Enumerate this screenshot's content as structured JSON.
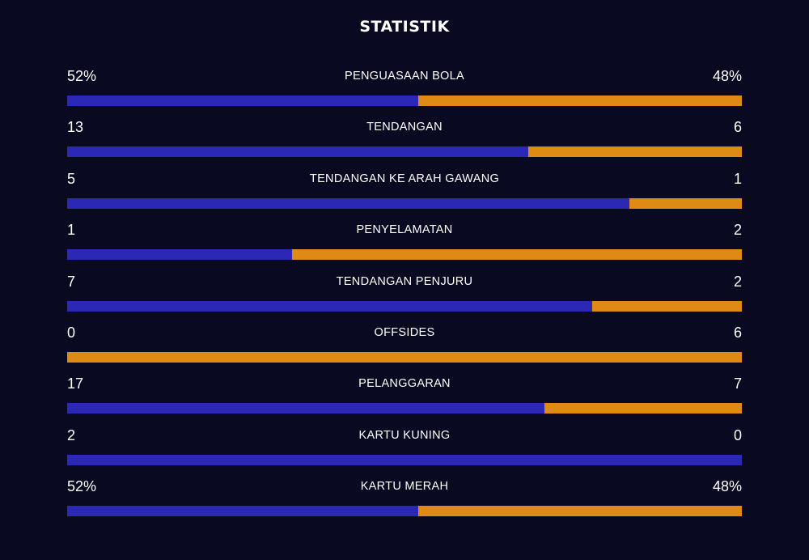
{
  "title": "STATISTIK",
  "colors": {
    "background": "#0a0922",
    "home_bar": "#2b28b5",
    "away_bar": "#e08a16",
    "text": "#ffffff"
  },
  "stats": [
    {
      "label": "PENGUASAAN BOLA",
      "home": "52%",
      "away": "48%",
      "home_share": 0.52
    },
    {
      "label": "TENDANGAN",
      "home": "13",
      "away": "6",
      "home_share": 0.684
    },
    {
      "label": "TENDANGAN KE ARAH GAWANG",
      "home": "5",
      "away": "1",
      "home_share": 0.833
    },
    {
      "label": "PENYELAMATAN",
      "home": "1",
      "away": "2",
      "home_share": 0.333
    },
    {
      "label": "TENDANGAN PENJURU",
      "home": "7",
      "away": "2",
      "home_share": 0.778
    },
    {
      "label": "OFFSIDES",
      "home": "0",
      "away": "6",
      "home_share": 0.0
    },
    {
      "label": "PELANGGARAN",
      "home": "17",
      "away": "7",
      "home_share": 0.708
    },
    {
      "label": "KARTU KUNING",
      "home": "2",
      "away": "0",
      "home_share": 1.0
    },
    {
      "label": "KARTU MERAH",
      "home": "52%",
      "away": "48%",
      "home_share": 0.52
    }
  ]
}
